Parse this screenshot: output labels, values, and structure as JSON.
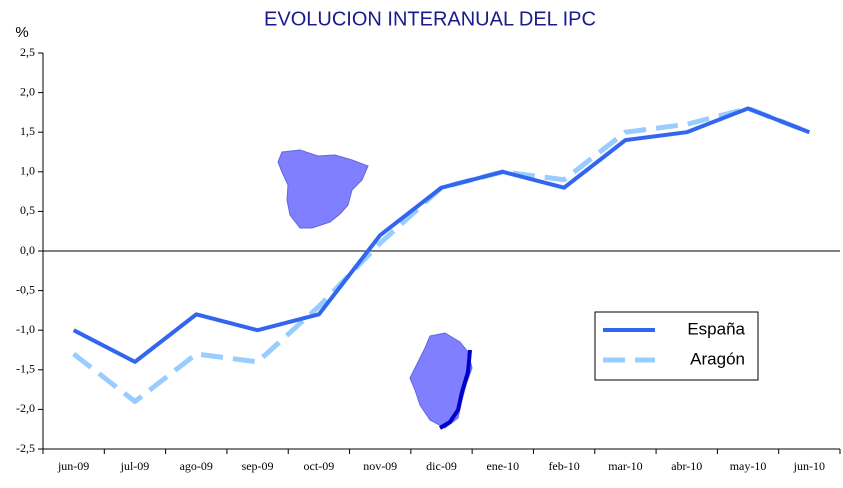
{
  "chart_data": {
    "type": "line",
    "title": "EVOLUCION INTERANUAL DEL IPC",
    "y_label": "%",
    "categories": [
      "jun-09",
      "jul-09",
      "ago-09",
      "sep-09",
      "oct-09",
      "nov-09",
      "dic-09",
      "ene-10",
      "feb-10",
      "mar-10",
      "abr-10",
      "may-10",
      "jun-10"
    ],
    "series": [
      {
        "name": "España",
        "color": "#3366ee",
        "dashed": false,
        "values": [
          -1.0,
          -1.4,
          -0.8,
          -1.0,
          -0.8,
          0.2,
          0.8,
          1.0,
          0.8,
          1.4,
          1.5,
          1.8,
          1.5
        ]
      },
      {
        "name": "Aragón",
        "color": "#99ccff",
        "dashed": true,
        "values": [
          -1.3,
          -1.9,
          -1.3,
          -1.4,
          -0.7,
          0.1,
          0.8,
          1.0,
          0.9,
          1.5,
          1.6,
          1.8,
          1.5
        ]
      }
    ],
    "ylim": [
      -2.5,
      2.5
    ],
    "yticks": [
      {
        "value": -2.5,
        "label": "-2,5"
      },
      {
        "value": -2.0,
        "label": "-2,0"
      },
      {
        "value": -1.5,
        "label": "-1,5"
      },
      {
        "value": -1.0,
        "label": "-1,0"
      },
      {
        "value": -0.5,
        "label": "-0,5"
      },
      {
        "value": 0,
        "label": "0,0"
      },
      {
        "value": 0.5,
        "label": "0,5"
      },
      {
        "value": 1.0,
        "label": "1,0"
      },
      {
        "value": 1.5,
        "label": "1,5"
      },
      {
        "value": 2.0,
        "label": "2,0"
      },
      {
        "value": 2.5,
        "label": "2,5"
      }
    ],
    "grid": false,
    "legend": "lower right"
  }
}
